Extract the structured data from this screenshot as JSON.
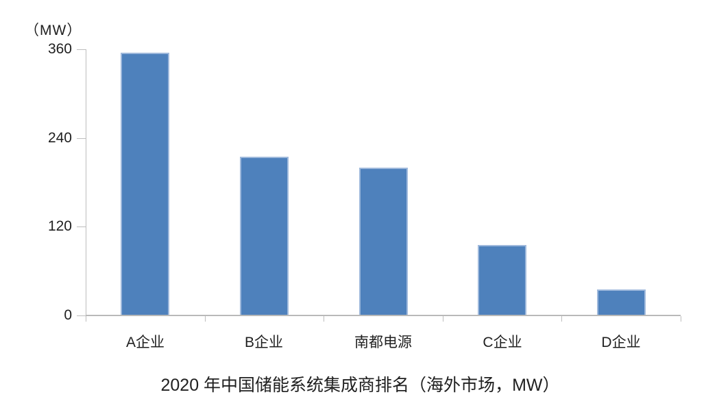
{
  "chart_data": {
    "type": "bar",
    "title": "2020 年中国储能系统集成商排名（海外市场，MW）",
    "unit_label": "（MW）",
    "categories": [
      "A企业",
      "B企业",
      "南都电源",
      "C企业",
      "D企业"
    ],
    "values": [
      355,
      215,
      200,
      95,
      35
    ],
    "ylim": [
      0,
      360
    ],
    "yticks": [
      0,
      120,
      240,
      360
    ],
    "xlabel": "",
    "ylabel": "MW",
    "grid": false,
    "legend": "none",
    "bar_color": "#4e81bc",
    "bar_border_color": "#9fb9dc",
    "axis_color": "#bdbdbd",
    "text_color": "#1f1f1f"
  }
}
